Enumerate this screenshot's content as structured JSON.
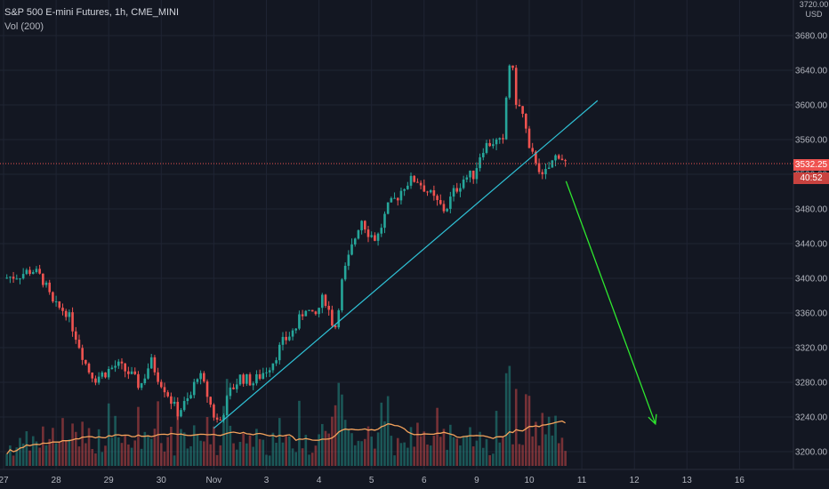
{
  "legend": {
    "title": "S&P 500 E-mini Futures, 1h, CME_MINI",
    "volume_label": "Vol (200)"
  },
  "currency": {
    "top": "3720.00",
    "unit": "USD"
  },
  "price_marker": {
    "price": "3532.25",
    "countdown": "40:52"
  },
  "colors": {
    "background": "#131722",
    "grid": "#1f2433",
    "up": "#26a69a",
    "down": "#ef5350",
    "trendline": "#2fc2d6",
    "arrow": "#2ee82e",
    "volume_ma": "#f5a35c",
    "axis_text": "#b2b5be"
  },
  "chart_data": {
    "type": "candlestick",
    "title": "S&P 500 E-mini Futures, 1h, CME_MINI",
    "y_ticks": [
      3200,
      3240,
      3280,
      3320,
      3360,
      3400,
      3440,
      3480,
      3520,
      3560,
      3600,
      3640,
      3680
    ],
    "y_tick_labels": [
      "3200.00",
      "3240.00",
      "3280.00",
      "3320.00",
      "3360.00",
      "3400.00",
      "3440.00",
      "3480.00",
      "3520.00",
      "3560.00",
      "3600.00",
      "3640.00",
      "3680.00"
    ],
    "ylim": [
      3194,
      3732
    ],
    "x_labels": [
      "27",
      "28",
      "29",
      "30",
      "Nov",
      "3",
      "4",
      "5",
      "6",
      "9",
      "10",
      "11",
      "12",
      "13",
      "16"
    ],
    "xlim": [
      0,
      16
    ],
    "x_label_positions": [
      0,
      1,
      2,
      3,
      4,
      5,
      6,
      7,
      8,
      9,
      10,
      11,
      12,
      13,
      14
    ],
    "price_path": [
      [
        0.0,
        3400
      ],
      [
        0.3,
        3404
      ],
      [
        0.55,
        3410
      ],
      [
        0.75,
        3398
      ],
      [
        0.95,
        3368
      ],
      [
        1.2,
        3362
      ],
      [
        1.4,
        3330
      ],
      [
        1.6,
        3295
      ],
      [
        1.75,
        3285
      ],
      [
        1.95,
        3292
      ],
      [
        2.15,
        3300
      ],
      [
        2.4,
        3290
      ],
      [
        2.6,
        3275
      ],
      [
        2.8,
        3305
      ],
      [
        2.95,
        3285
      ],
      [
        3.1,
        3270
      ],
      [
        3.3,
        3245
      ],
      [
        3.55,
        3262
      ],
      [
        3.7,
        3292
      ],
      [
        3.85,
        3270
      ],
      [
        4.0,
        3242
      ],
      [
        4.1,
        3232
      ],
      [
        4.3,
        3268
      ],
      [
        4.5,
        3286
      ],
      [
        4.75,
        3280
      ],
      [
        4.95,
        3292
      ],
      [
        5.1,
        3302
      ],
      [
        5.3,
        3325
      ],
      [
        5.55,
        3342
      ],
      [
        5.75,
        3368
      ],
      [
        5.9,
        3352
      ],
      [
        6.1,
        3380
      ],
      [
        6.3,
        3340
      ],
      [
        6.45,
        3400
      ],
      [
        6.6,
        3430
      ],
      [
        6.8,
        3470
      ],
      [
        6.95,
        3452
      ],
      [
        7.1,
        3445
      ],
      [
        7.3,
        3480
      ],
      [
        7.5,
        3495
      ],
      [
        7.65,
        3510
      ],
      [
        7.85,
        3515
      ],
      [
        8.0,
        3505
      ],
      [
        8.2,
        3490
      ],
      [
        8.4,
        3478
      ],
      [
        8.55,
        3498
      ],
      [
        8.75,
        3515
      ],
      [
        8.95,
        3520
      ],
      [
        9.1,
        3550
      ],
      [
        9.3,
        3558
      ],
      [
        9.5,
        3555
      ],
      [
        9.6,
        3640
      ],
      [
        9.65,
        3655
      ],
      [
        9.75,
        3605
      ],
      [
        9.9,
        3585
      ],
      [
        10.0,
        3545
      ],
      [
        10.15,
        3535
      ],
      [
        10.25,
        3515
      ],
      [
        10.4,
        3530
      ],
      [
        10.55,
        3545
      ],
      [
        10.7,
        3532
      ]
    ],
    "trendline": {
      "start": [
        4.0,
        3227
      ],
      "end": [
        11.3,
        3605
      ]
    },
    "projection_arrow": {
      "start": [
        10.7,
        3512
      ],
      "end": [
        12.4,
        3232
      ]
    },
    "volume": {
      "label": "Vol (200)",
      "ma_level": "approx 30% of peak volume"
    }
  }
}
